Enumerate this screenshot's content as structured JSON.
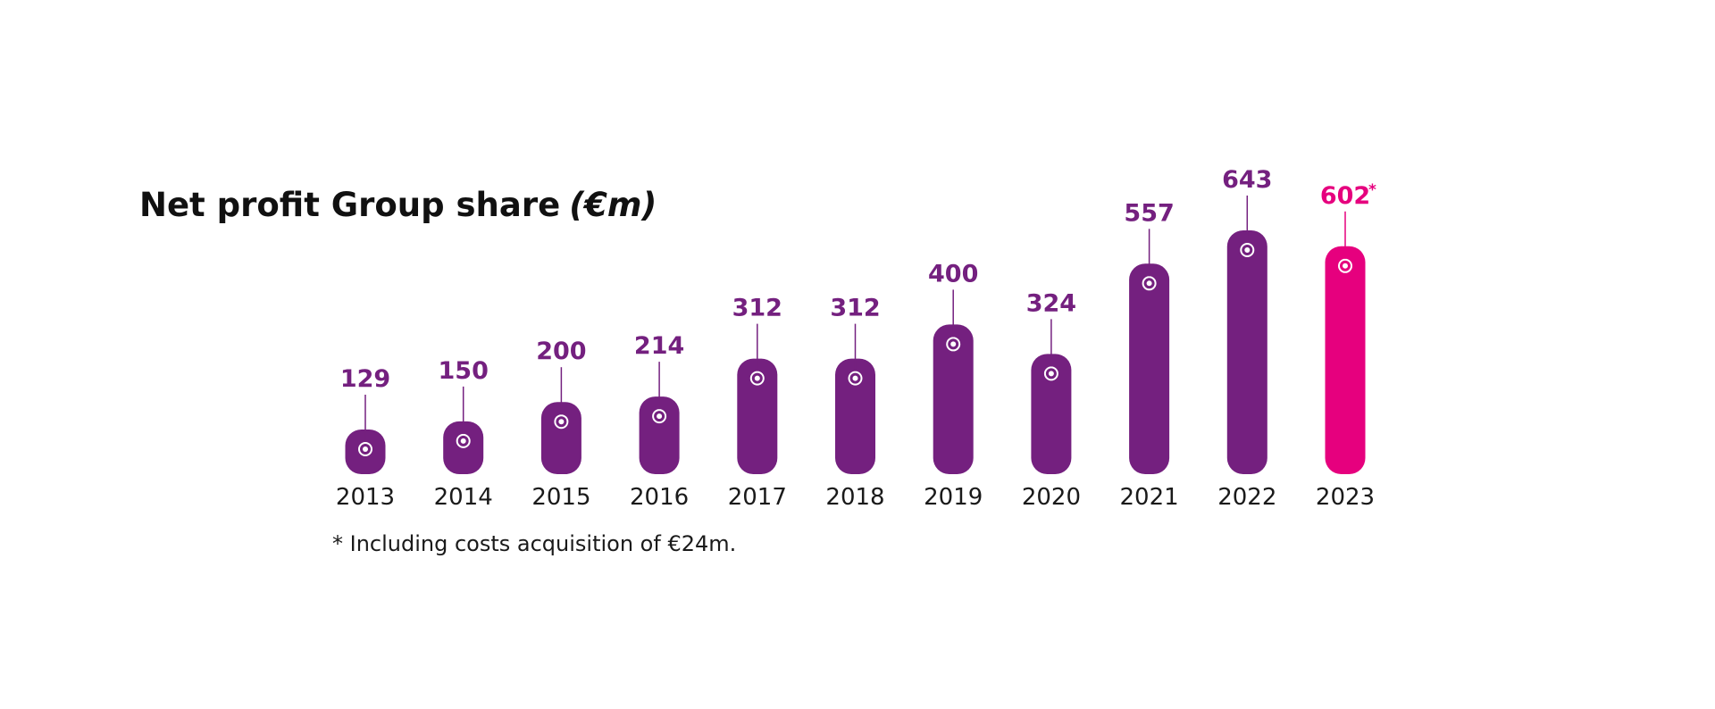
{
  "chart_data": {
    "type": "bar",
    "title": "Net profit Group share",
    "title_unit": "(€m)",
    "categories": [
      "2013",
      "2014",
      "2015",
      "2016",
      "2017",
      "2018",
      "2019",
      "2020",
      "2021",
      "2022",
      "2023"
    ],
    "values": [
      129,
      150,
      200,
      214,
      312,
      312,
      400,
      324,
      557,
      643,
      602
    ],
    "value_labels": [
      "129",
      "150",
      "200",
      "214",
      "312",
      "312",
      "400",
      "324",
      "557",
      "643",
      "602"
    ],
    "annotated_index": 10,
    "annotation_marker": "*",
    "footnote": "* Including costs acquisition of €24m.",
    "xlabel": "",
    "ylabel": "",
    "ylim": [
      0,
      643
    ],
    "grid": false,
    "colors": {
      "bar": "#74207f",
      "highlight_bar": "#e6007e",
      "marker": "#ffffff",
      "title": "#111111",
      "text": "#1a1a1a"
    }
  }
}
